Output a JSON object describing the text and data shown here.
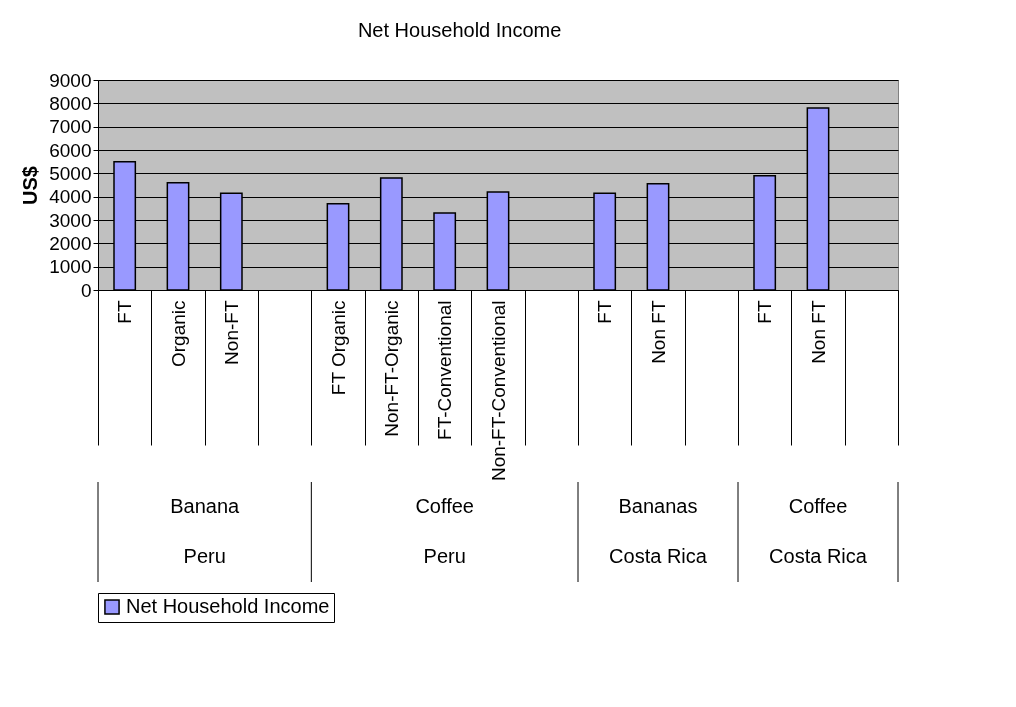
{
  "chart_data": {
    "type": "bar",
    "title": "Net Household Income",
    "ylabel": "US$",
    "categories": [
      "FT",
      "Organic",
      "Non-FT",
      null,
      "FT Organic",
      "Non-FT-Organic",
      "FT-Conventional",
      "Non-FT-Conventional",
      null,
      "FT",
      "Non FT",
      null,
      "FT",
      "Non FT",
      null
    ],
    "series": [
      {
        "name": "Net Household Income",
        "color": "#9999ff",
        "values": [
          5500,
          4600,
          4150,
          null,
          3700,
          4800,
          3300,
          4200,
          null,
          4150,
          4550,
          null,
          4900,
          7800,
          null
        ]
      }
    ],
    "ylim": [
      0,
      9000
    ],
    "yticks": [
      0,
      1000,
      2000,
      3000,
      4000,
      5000,
      6000,
      7000,
      8000,
      9000
    ],
    "grid": "y",
    "legend": "bottom",
    "annotations": [
      "Banana",
      "Peru",
      "Coffee",
      "Peru",
      "Bananas",
      "Costa Rica",
      "Coffee",
      "Costa Rica"
    ]
  }
}
